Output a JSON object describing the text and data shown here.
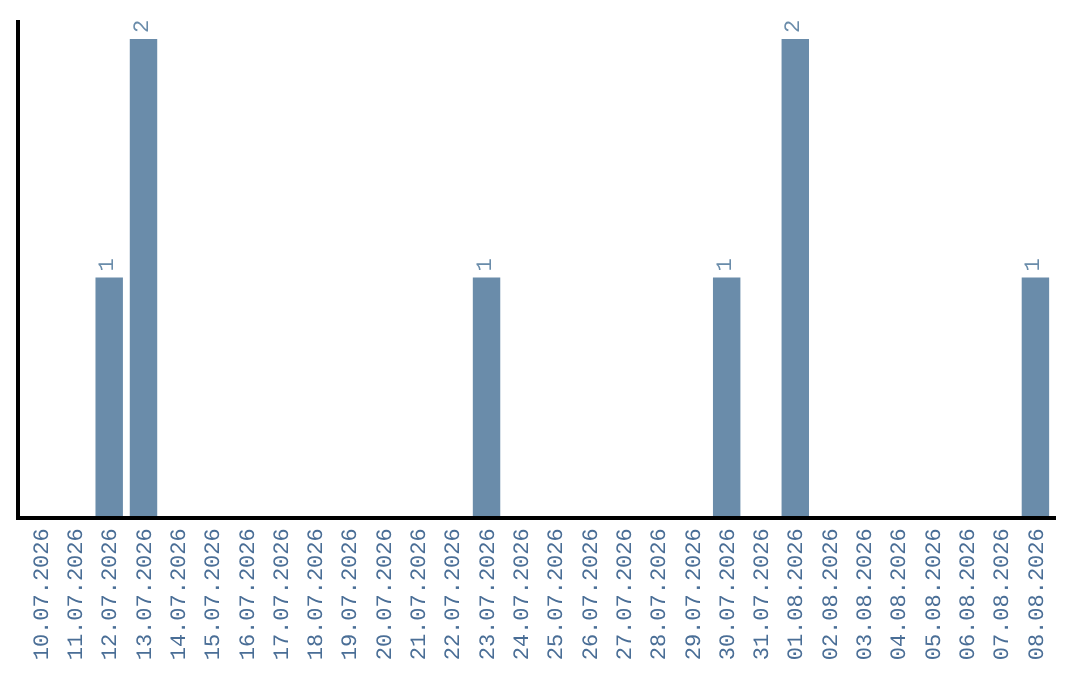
{
  "chart_data": {
    "type": "bar",
    "categories": [
      "10.07.2026",
      "11.07.2026",
      "12.07.2026",
      "13.07.2026",
      "14.07.2026",
      "15.07.2026",
      "16.07.2026",
      "17.07.2026",
      "18.07.2026",
      "19.07.2026",
      "20.07.2026",
      "21.07.2026",
      "22.07.2026",
      "23.07.2026",
      "24.07.2026",
      "25.07.2026",
      "26.07.2026",
      "27.07.2026",
      "28.07.2026",
      "29.07.2026",
      "30.07.2026",
      "31.07.2026",
      "01.08.2026",
      "02.08.2026",
      "03.08.2026",
      "04.08.2026",
      "05.08.2026",
      "06.08.2026",
      "07.08.2026",
      "08.08.2026"
    ],
    "values": [
      0,
      0,
      1,
      2,
      0,
      0,
      0,
      0,
      0,
      0,
      0,
      0,
      0,
      1,
      0,
      0,
      0,
      0,
      0,
      0,
      1,
      0,
      2,
      0,
      0,
      0,
      0,
      0,
      0,
      1
    ],
    "value_labels": [
      null,
      null,
      "1",
      "2",
      null,
      null,
      null,
      null,
      null,
      null,
      null,
      null,
      null,
      "1",
      null,
      null,
      null,
      null,
      null,
      null,
      "1",
      null,
      "2",
      null,
      null,
      null,
      null,
      null,
      null,
      "1"
    ],
    "color": "#6a8caa",
    "tick_labels": "x"
  }
}
